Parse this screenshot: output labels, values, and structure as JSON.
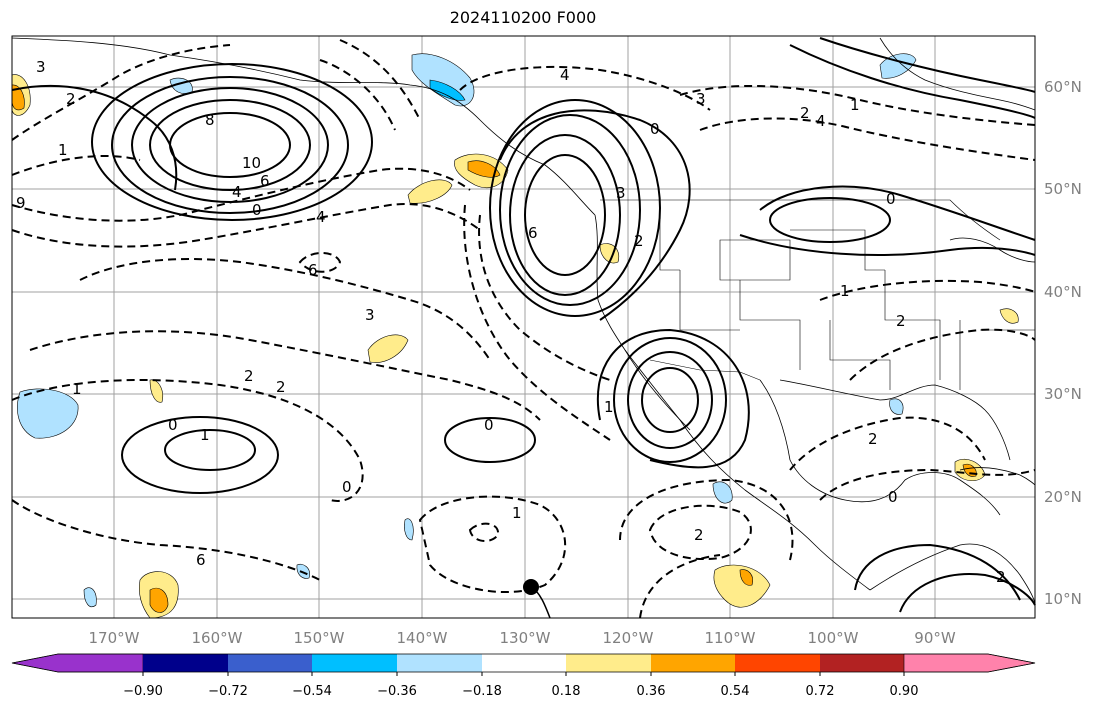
{
  "title": "2024110200 F000",
  "lon_labels": [
    "170°W",
    "160°W",
    "150°W",
    "140°W",
    "130°W",
    "120°W",
    "110°W",
    "100°W",
    "90°W"
  ],
  "lat_labels": [
    "60°N",
    "50°N",
    "40°N",
    "30°N",
    "20°N",
    "10°N"
  ],
  "colorbar": {
    "colors": [
      "#9932cc",
      "#00008b",
      "#3a5fcd",
      "#00bfff",
      "#b0e2ff",
      "#ffffff",
      "#ffec8b",
      "#ffa500",
      "#ff4500",
      "#b22222",
      "#ff82ab"
    ],
    "tick_labels": [
      "−0.90",
      "−0.72",
      "−0.54",
      "−0.36",
      "−0.18",
      "0.18",
      "0.36",
      "0.54",
      "0.72",
      "0.90"
    ]
  },
  "contour_labels": [
    "3",
    "2",
    "8",
    "10",
    "4",
    "6",
    "0",
    "1",
    "9",
    "4",
    "6",
    "3",
    "2",
    "2",
    "0",
    "1",
    "1",
    "0",
    "0",
    "1",
    "2",
    "2",
    "6",
    "3",
    "2",
    "1",
    "0",
    "3",
    "4",
    "2",
    "1",
    "1",
    "0",
    "2",
    "0",
    "2",
    "4",
    "6"
  ],
  "marker": "storm-center",
  "colors": {
    "land": "#000000",
    "grid": "#a0a0a0",
    "positive": "#000000",
    "negative": "#000000"
  }
}
